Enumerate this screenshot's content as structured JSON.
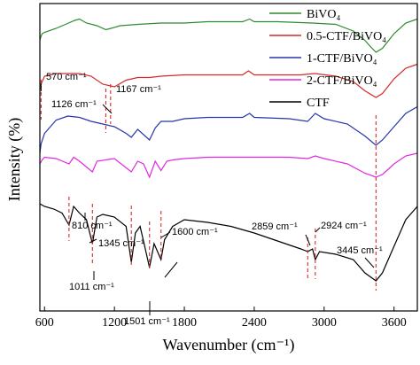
{
  "chart_data": {
    "type": "line",
    "xlabel": "Wavenumber (cm⁻¹)",
    "ylabel": "Intensity (%)",
    "xlim": [
      560,
      3800
    ],
    "xticks": [
      600,
      1200,
      1800,
      2400,
      3000,
      3600
    ],
    "y_ticks_shown": false,
    "grid": false,
    "legend_placement": "top-right",
    "series": [
      {
        "name": "BiVO₄",
        "color": "#2e8b2e",
        "y_units": "offset intensity (a.u.)",
        "points": [
          [
            560,
            25
          ],
          [
            570,
            22
          ],
          [
            580,
            20
          ],
          [
            600,
            19
          ],
          [
            700,
            16
          ],
          [
            780,
            13
          ],
          [
            860,
            10
          ],
          [
            900,
            9
          ],
          [
            960,
            12
          ],
          [
            1050,
            14
          ],
          [
            1126,
            17
          ],
          [
            1170,
            16
          ],
          [
            1250,
            14
          ],
          [
            1400,
            13
          ],
          [
            1600,
            12
          ],
          [
            1800,
            12
          ],
          [
            2000,
            11
          ],
          [
            2300,
            11
          ],
          [
            2360,
            9
          ],
          [
            2400,
            11
          ],
          [
            2600,
            11
          ],
          [
            2900,
            12
          ],
          [
            3100,
            13
          ],
          [
            3250,
            18
          ],
          [
            3350,
            25
          ],
          [
            3400,
            30
          ],
          [
            3445,
            34
          ],
          [
            3500,
            31
          ],
          [
            3600,
            20
          ],
          [
            3700,
            12
          ],
          [
            3800,
            9
          ]
        ]
      },
      {
        "name": "0.5-CTF/BiVO₄",
        "color": "#d42a2a",
        "y_units": "offset intensity (a.u.)",
        "points": [
          [
            560,
            60
          ],
          [
            575,
            57
          ],
          [
            600,
            52
          ],
          [
            700,
            50
          ],
          [
            800,
            50
          ],
          [
            900,
            50
          ],
          [
            1000,
            52
          ],
          [
            1100,
            58
          ],
          [
            1200,
            60
          ],
          [
            1300,
            55
          ],
          [
            1400,
            53
          ],
          [
            1500,
            53
          ],
          [
            1600,
            52
          ],
          [
            1800,
            51
          ],
          [
            2000,
            51
          ],
          [
            2300,
            51
          ],
          [
            2350,
            48
          ],
          [
            2400,
            51
          ],
          [
            2600,
            51
          ],
          [
            2800,
            51
          ],
          [
            2920,
            50
          ],
          [
            3100,
            52
          ],
          [
            3250,
            56
          ],
          [
            3350,
            63
          ],
          [
            3445,
            68
          ],
          [
            3500,
            65
          ],
          [
            3600,
            54
          ],
          [
            3700,
            46
          ],
          [
            3800,
            43
          ]
        ]
      },
      {
        "name": "1-CTF/BiVO₄",
        "color": "#2536a8",
        "y_units": "offset intensity (a.u.)",
        "points": [
          [
            560,
            110
          ],
          [
            570,
            103
          ],
          [
            600,
            95
          ],
          [
            700,
            85
          ],
          [
            800,
            82
          ],
          [
            900,
            83
          ],
          [
            1000,
            86
          ],
          [
            1100,
            88
          ],
          [
            1200,
            90
          ],
          [
            1300,
            95
          ],
          [
            1345,
            98
          ],
          [
            1400,
            92
          ],
          [
            1501,
            100
          ],
          [
            1550,
            91
          ],
          [
            1600,
            86
          ],
          [
            1700,
            86
          ],
          [
            1800,
            84
          ],
          [
            2000,
            83
          ],
          [
            2300,
            83
          ],
          [
            2360,
            80
          ],
          [
            2400,
            83
          ],
          [
            2700,
            84
          ],
          [
            2859,
            86
          ],
          [
            2924,
            80
          ],
          [
            3000,
            84
          ],
          [
            3200,
            88
          ],
          [
            3350,
            97
          ],
          [
            3445,
            104
          ],
          [
            3500,
            100
          ],
          [
            3600,
            90
          ],
          [
            3700,
            80
          ],
          [
            3800,
            75
          ]
        ]
      },
      {
        "name": "2-CTF/BiVO₄",
        "color": "#e028e0",
        "y_units": "offset intensity (a.u.)",
        "points": [
          [
            560,
            118
          ],
          [
            580,
            115
          ],
          [
            600,
            113
          ],
          [
            700,
            114
          ],
          [
            810,
            118
          ],
          [
            850,
            113
          ],
          [
            900,
            116
          ],
          [
            1011,
            124
          ],
          [
            1050,
            116
          ],
          [
            1200,
            114
          ],
          [
            1345,
            124
          ],
          [
            1400,
            116
          ],
          [
            1450,
            118
          ],
          [
            1501,
            128
          ],
          [
            1550,
            116
          ],
          [
            1600,
            123
          ],
          [
            1650,
            116
          ],
          [
            1700,
            115
          ],
          [
            1800,
            114
          ],
          [
            2000,
            113
          ],
          [
            2300,
            113
          ],
          [
            2400,
            113
          ],
          [
            2700,
            113
          ],
          [
            2859,
            114
          ],
          [
            2924,
            112
          ],
          [
            3000,
            114
          ],
          [
            3200,
            118
          ],
          [
            3350,
            125
          ],
          [
            3445,
            128
          ],
          [
            3500,
            126
          ],
          [
            3600,
            118
          ],
          [
            3700,
            112
          ],
          [
            3800,
            110
          ]
        ]
      },
      {
        "name": "CTF",
        "color": "#000000",
        "y_units": "offset intensity (a.u.)",
        "points": [
          [
            560,
            148
          ],
          [
            600,
            150
          ],
          [
            680,
            152
          ],
          [
            750,
            155
          ],
          [
            810,
            164
          ],
          [
            850,
            150
          ],
          [
            900,
            155
          ],
          [
            960,
            160
          ],
          [
            1011,
            178
          ],
          [
            1050,
            158
          ],
          [
            1100,
            156
          ],
          [
            1200,
            158
          ],
          [
            1300,
            165
          ],
          [
            1345,
            192
          ],
          [
            1380,
            170
          ],
          [
            1420,
            165
          ],
          [
            1460,
            180
          ],
          [
            1501,
            196
          ],
          [
            1540,
            178
          ],
          [
            1600,
            190
          ],
          [
            1630,
            175
          ],
          [
            1700,
            165
          ],
          [
            1800,
            160
          ],
          [
            2000,
            162
          ],
          [
            2200,
            165
          ],
          [
            2400,
            170
          ],
          [
            2600,
            176
          ],
          [
            2800,
            182
          ],
          [
            2859,
            184
          ],
          [
            2900,
            182
          ],
          [
            2924,
            190
          ],
          [
            2960,
            184
          ],
          [
            3100,
            186
          ],
          [
            3250,
            190
          ],
          [
            3350,
            200
          ],
          [
            3445,
            206
          ],
          [
            3500,
            200
          ],
          [
            3600,
            180
          ],
          [
            3700,
            160
          ],
          [
            3800,
            150
          ]
        ]
      }
    ],
    "annotations": [
      {
        "label": "570 cm⁻¹",
        "wavenumber": 570
      },
      {
        "label": "1126 cm⁻¹",
        "wavenumber": 1126
      },
      {
        "label": "1167 cm⁻¹",
        "wavenumber": 1167
      },
      {
        "label": "810 cm⁻¹",
        "wavenumber": 810
      },
      {
        "label": "1345 cm⁻¹",
        "wavenumber": 1345
      },
      {
        "label": "1600 cm⁻¹",
        "wavenumber": 1600
      },
      {
        "label": "1011 cm⁻¹",
        "wavenumber": 1011
      },
      {
        "label": "1501 cm⁻¹",
        "wavenumber": 1501
      },
      {
        "label": "2859 cm⁻¹",
        "wavenumber": 2859
      },
      {
        "label": "2924 cm⁻¹",
        "wavenumber": 2924
      },
      {
        "label": "3445 cm⁻¹",
        "wavenumber": 3445
      }
    ]
  }
}
